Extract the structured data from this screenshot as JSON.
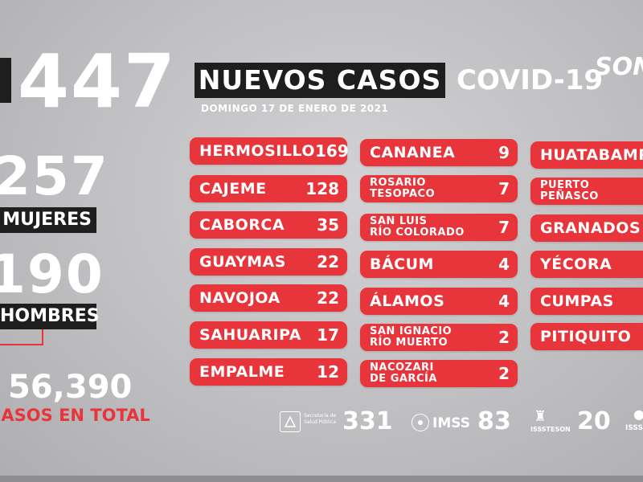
{
  "headline": {
    "total_new": "447",
    "title": "NUEVOS CASOS",
    "covid_label": "COVID-19",
    "brand": "SON",
    "date": "DOMINGO 17 DE ENERO DE 2021"
  },
  "left_panel": {
    "women_count": "257",
    "women_label": "MUJERES",
    "men_count": "190",
    "men_label": "HOMBRES",
    "total_count": "56,390",
    "total_label": "CASOS EN TOTAL"
  },
  "columns": [
    [
      {
        "name": "HERMOSILLO",
        "value": "169"
      },
      {
        "name": "CAJEME",
        "value": "128"
      },
      {
        "name": "CABORCA",
        "value": "35"
      },
      {
        "name": "GUAYMAS",
        "value": "22"
      },
      {
        "name": "NAVOJOA",
        "value": "22"
      },
      {
        "name": "SAHUARIPA",
        "value": "17"
      },
      {
        "name": "EMPALME",
        "value": "12"
      }
    ],
    [
      {
        "name": "CANANEA",
        "value": "9"
      },
      {
        "name": "ROSARIO\nTESOPACO",
        "value": "7"
      },
      {
        "name": "SAN LUIS\nRÍO COLORADO",
        "value": "7"
      },
      {
        "name": "BÁCUM",
        "value": "4"
      },
      {
        "name": "ÁLAMOS",
        "value": "4"
      },
      {
        "name": "SAN IGNACIO\nRÍO MUERTO",
        "value": "2"
      },
      {
        "name": "NACOZARI\nDE GARCÍA",
        "value": "2"
      }
    ],
    [
      {
        "name": "HUATABAMPO",
        "value": ""
      },
      {
        "name": "PUERTO\nPEÑASCO",
        "value": ""
      },
      {
        "name": "GRANADOS",
        "value": ""
      },
      {
        "name": "YÉCORA",
        "value": ""
      },
      {
        "name": "CUMPAS",
        "value": ""
      },
      {
        "name": "PITIQUITO",
        "value": ""
      }
    ]
  ],
  "institutions": [
    {
      "label": "Secretaría de Salud Pública",
      "value": "331"
    },
    {
      "label": "IMSS",
      "value": "83"
    },
    {
      "label": "ISSSTESON",
      "value": "20"
    },
    {
      "label": "ISSS",
      "value": ""
    }
  ],
  "colors": {
    "accent_red": "#e8353c",
    "dark_bar": "#1e1e1e"
  }
}
